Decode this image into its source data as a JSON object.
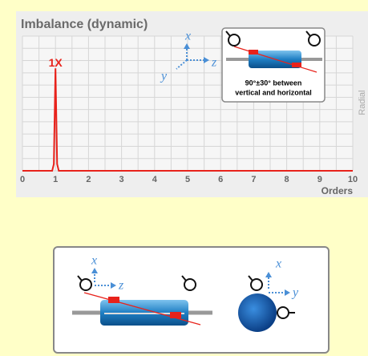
{
  "chart_data": {
    "type": "line",
    "title": "Imbalance (dynamic)",
    "x_label": "Orders",
    "y_label": "Radial",
    "annotation": "1X",
    "x": [
      0,
      0.9,
      0.95,
      1,
      1.05,
      1.1,
      10
    ],
    "values": [
      0,
      0,
      0.05,
      0.76,
      0.05,
      0,
      0
    ],
    "color": "#e8221b",
    "xlim": [
      0,
      10
    ],
    "xticks": [
      0,
      1,
      2,
      3,
      4,
      5,
      6,
      7,
      8,
      9,
      10
    ],
    "ylim": [
      0,
      1
    ],
    "grid": true
  },
  "diagram": {
    "top_axes": [
      "x",
      "y",
      "z"
    ],
    "note": [
      "90°±30° between",
      "vertical and horizontal"
    ],
    "bottom_axes": [
      "x",
      "z",
      "x",
      "y"
    ]
  }
}
